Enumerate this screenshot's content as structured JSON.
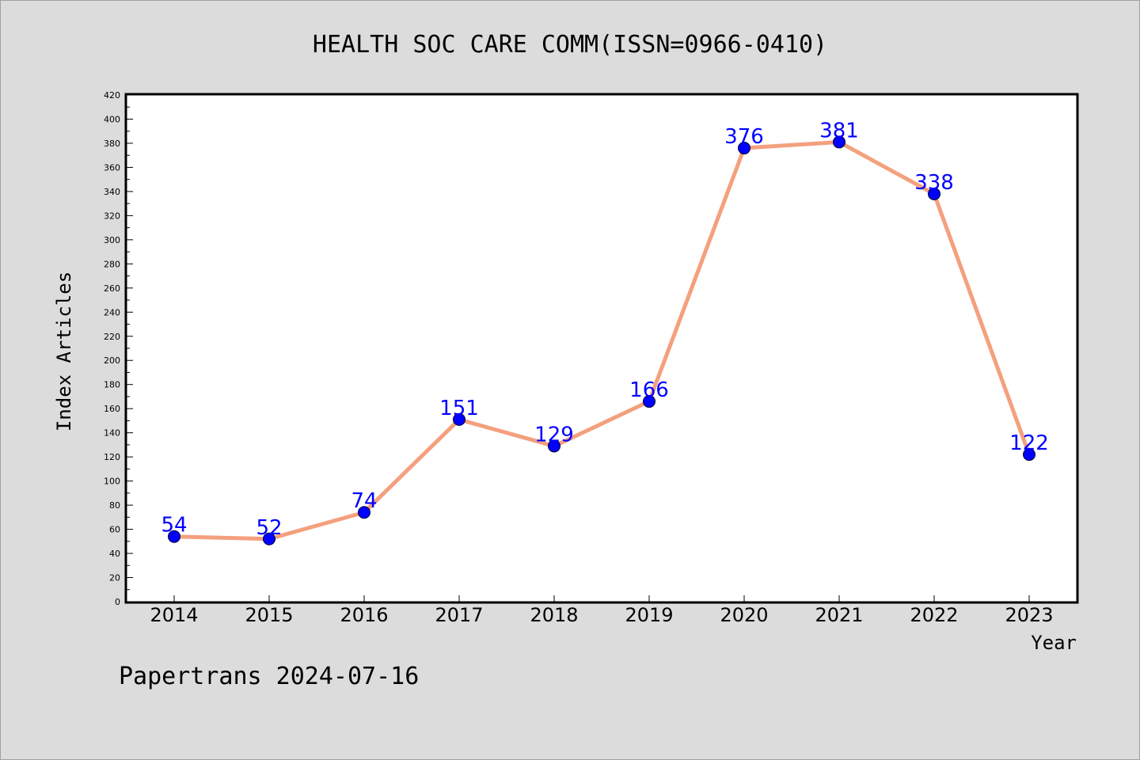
{
  "chart_data": {
    "type": "line",
    "title": "HEALTH SOC CARE COMM(ISSN=0966-0410)",
    "xlabel": "Year",
    "ylabel": "Index Articles",
    "categories": [
      "2014",
      "2015",
      "2016",
      "2017",
      "2018",
      "2019",
      "2020",
      "2021",
      "2022",
      "2023"
    ],
    "series": [
      {
        "values": [
          54,
          52,
          74,
          151,
          129,
          166,
          376,
          381,
          338,
          122
        ],
        "line_color": "#f4a07e",
        "marker_color": "#0000ff"
      }
    ],
    "ylim": [
      0,
      420
    ],
    "yticks": [
      0,
      20,
      40,
      60,
      80,
      100,
      120,
      140,
      160,
      180,
      200,
      220,
      240,
      260,
      280,
      300,
      320,
      340,
      360,
      380,
      400,
      420
    ],
    "grid": false,
    "data_labels": true
  },
  "footer": "Papertrans 2024-07-16",
  "colors": {
    "background": "#dcdcdc",
    "plot_background": "#ffffff",
    "line": "#f4a07e",
    "marker": "#0000ff",
    "label": "#0000ff"
  }
}
